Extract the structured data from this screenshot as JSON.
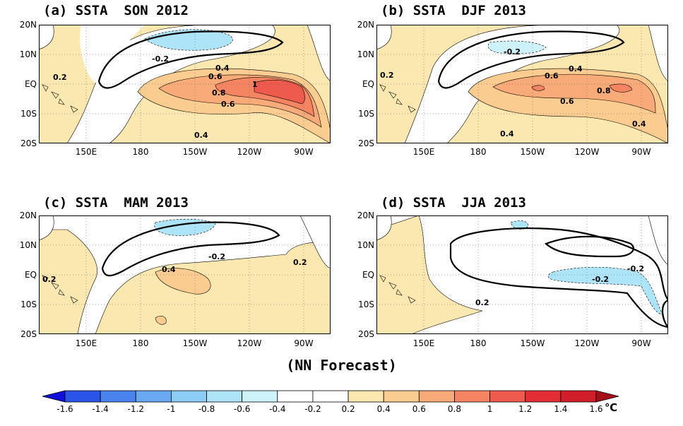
{
  "panels": [
    {
      "title": "(a) SSTA  SON 2012",
      "contour_labels": [
        "-0.2",
        "0.2",
        "0.4",
        "0.6",
        "0.8",
        "1",
        "0.6",
        "0.4"
      ],
      "max_anomaly": 1.2
    },
    {
      "title": "(b) SSTA  DJF 2013",
      "contour_labels": [
        "-0.2",
        "0.2",
        "0.4",
        "0.6",
        "0.8",
        "0.6",
        "0.4",
        "0.4"
      ],
      "max_anomaly": 1.0
    },
    {
      "title": "(c) SSTA  MAM 2013",
      "contour_labels": [
        "-0.2",
        "0.2",
        "0.4",
        "0.2"
      ],
      "max_anomaly": 0.6
    },
    {
      "title": "(d) SSTA  JJA 2013",
      "contour_labels": [
        "-0.2",
        "-0.2",
        "0.2"
      ],
      "max_anomaly": 0.4
    }
  ],
  "axes": {
    "y_ticks": [
      "20N",
      "10N",
      "EQ",
      "10S",
      "20S"
    ],
    "x_ticks": [
      "150E",
      "180",
      "150W",
      "120W",
      "90W"
    ]
  },
  "caption": "(NN Forecast)",
  "colorbar": {
    "labels": [
      "-1.6",
      "-1.4",
      "-1.2",
      "-1",
      "-0.8",
      "-0.6",
      "-0.4",
      "-0.2",
      "0.2",
      "0.4",
      "0.6",
      "0.8",
      "1",
      "1.2",
      "1.4",
      "1.6"
    ],
    "colors": [
      "#1010d8",
      "#2a55e8",
      "#4a82ee",
      "#6aa8f2",
      "#8ccdf6",
      "#aee4f8",
      "#cdf2fa",
      "#ffffff",
      "#ffffff",
      "#fbe7b0",
      "#fbcc90",
      "#f8ab78",
      "#f48462",
      "#ee5a4c",
      "#e42e36",
      "#d01e2a",
      "#a50f1a"
    ],
    "unit": "℃"
  }
}
